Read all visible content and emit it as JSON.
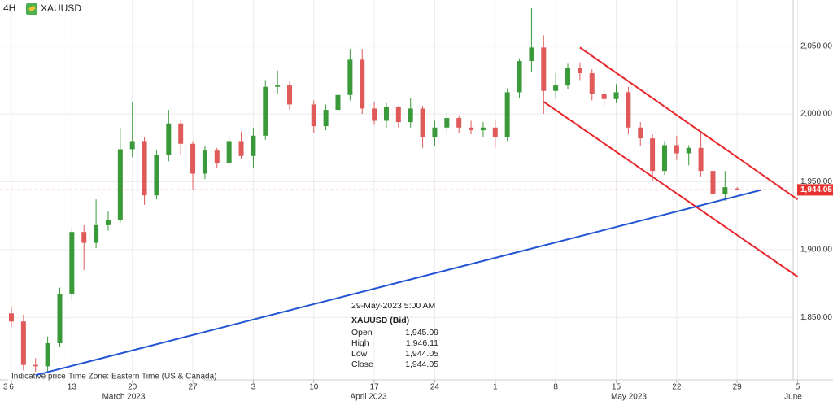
{
  "header": {
    "interval": "4H",
    "symbol": "XAUUSD"
  },
  "footer": {
    "note": "Indicative price",
    "timezone": "Time Zone: Eastern Time (US & Canada)"
  },
  "chart_data": {
    "type": "candlestick",
    "x": [
      "2023-03-06",
      "2023-03-07",
      "2023-03-08",
      "2023-03-09",
      "2023-03-10",
      "2023-03-13",
      "2023-03-14",
      "2023-03-15",
      "2023-03-16",
      "2023-03-17",
      "2023-03-20",
      "2023-03-21",
      "2023-03-22",
      "2023-03-23",
      "2023-03-24",
      "2023-03-27",
      "2023-03-28",
      "2023-03-29",
      "2023-03-30",
      "2023-03-31",
      "2023-04-03",
      "2023-04-04",
      "2023-04-05",
      "2023-04-06",
      "2023-04-10",
      "2023-04-11",
      "2023-04-12",
      "2023-04-13",
      "2023-04-14",
      "2023-04-17",
      "2023-04-18",
      "2023-04-19",
      "2023-04-20",
      "2023-04-21",
      "2023-04-24",
      "2023-04-25",
      "2023-04-26",
      "2023-04-27",
      "2023-04-28",
      "2023-05-01",
      "2023-05-02",
      "2023-05-03",
      "2023-05-04",
      "2023-05-05",
      "2023-05-08",
      "2023-05-09",
      "2023-05-10",
      "2023-05-11",
      "2023-05-12",
      "2023-05-15",
      "2023-05-16",
      "2023-05-17",
      "2023-05-18",
      "2023-05-19",
      "2023-05-22",
      "2023-05-23",
      "2023-05-24",
      "2023-05-25",
      "2023-05-26",
      "2023-05-29"
    ],
    "open": [
      1853,
      1847,
      1815,
      1814,
      1831,
      1867,
      1913,
      1905,
      1918,
      1922,
      1974,
      1980,
      1940,
      1970,
      1993,
      1978,
      1956,
      1973,
      1964,
      1980,
      1969,
      1984,
      2020,
      2021,
      2007,
      1991,
      2003,
      2014,
      2040,
      2004,
      1995,
      2005,
      1994,
      2004,
      1983,
      1990,
      1997,
      1990,
      1988,
      1990,
      1983,
      2016,
      2039,
      2049,
      2017,
      2021,
      2034,
      2030,
      2015,
      2011,
      2016,
      1990,
      1982,
      1958,
      1977,
      1971,
      1975,
      1958,
      1941,
      1945.09
    ],
    "high": [
      1858,
      1852,
      1820,
      1836,
      1872,
      1916,
      1918,
      1937,
      1928,
      1990,
      2009,
      1983,
      1973,
      2003,
      1996,
      1980,
      1976,
      1975,
      1983,
      1987,
      1990,
      2025,
      2032,
      2024,
      2010,
      2007,
      2021,
      2048,
      2048,
      2009,
      2008,
      2006,
      2012,
      2006,
      1995,
      2001,
      1999,
      1995,
      1994,
      1996,
      2019,
      2041,
      2078,
      2058,
      2030,
      2037,
      2038,
      2033,
      2018,
      2022,
      2020,
      1994,
      1985,
      1980,
      1984,
      1977,
      1987,
      1962,
      1958,
      1946.11
    ],
    "low": [
      1843,
      1811,
      1809,
      1810,
      1828,
      1864,
      1885,
      1901,
      1914,
      1920,
      1968,
      1933,
      1937,
      1965,
      1970,
      1944,
      1952,
      1960,
      1962,
      1967,
      1960,
      1981,
      2015,
      2003,
      1986,
      1988,
      1999,
      2010,
      2000,
      1992,
      1990,
      1990,
      1990,
      1975,
      1976,
      1986,
      1986,
      1985,
      1983,
      1975,
      1980,
      2012,
      2031,
      2000,
      2012,
      2018,
      2025,
      2010,
      2005,
      2008,
      1985,
      1976,
      1950,
      1955,
      1966,
      1962,
      1954,
      1936,
      1936,
      1944.05
    ],
    "close": [
      1847,
      1815,
      1814,
      1831,
      1867,
      1913,
      1905,
      1918,
      1922,
      1974,
      1980,
      1940,
      1970,
      1993,
      1978,
      1956,
      1973,
      1964,
      1980,
      1969,
      1984,
      2020,
      2021,
      2007,
      1991,
      2003,
      2014,
      2040,
      2004,
      1995,
      2005,
      1994,
      2004,
      1983,
      1990,
      1997,
      1990,
      1988,
      1990,
      1983,
      2016,
      2039,
      2049,
      2017,
      2021,
      2034,
      2030,
      2015,
      2011,
      2016,
      1990,
      1982,
      1958,
      1977,
      1971,
      1975,
      1958,
      1941,
      1946,
      1944.05
    ],
    "up_color": "#3a9a3a",
    "down_color": "#e05a5a",
    "ylim": [
      1804,
      2084
    ],
    "yticks": [
      {
        "value": 1850,
        "label": "1,850.00"
      },
      {
        "value": 1900,
        "label": "1,900.00"
      },
      {
        "value": 1950,
        "label": "1,950.00"
      },
      {
        "value": 2000,
        "label": "2,000.00"
      },
      {
        "value": 2050,
        "label": "2,050.00"
      }
    ],
    "xticks": [
      {
        "value": "2023-03-03",
        "label": "3"
      },
      {
        "value": "2023-03-06",
        "label": "6"
      },
      {
        "value": "2023-03-13",
        "label": "13"
      },
      {
        "value": "2023-03-20",
        "label": "20"
      },
      {
        "value": "2023-03-27",
        "label": "27"
      },
      {
        "value": "2023-04-03",
        "label": "3"
      },
      {
        "value": "2023-04-10",
        "label": "10"
      },
      {
        "value": "2023-04-17",
        "label": "17"
      },
      {
        "value": "2023-04-24",
        "label": "24"
      },
      {
        "value": "2023-05-01",
        "label": "1"
      },
      {
        "value": "2023-05-08",
        "label": "8"
      },
      {
        "value": "2023-05-15",
        "label": "15"
      },
      {
        "value": "2023-05-22",
        "label": "22"
      },
      {
        "value": "2023-05-29",
        "label": "29"
      },
      {
        "value": "2023-06-05",
        "label": "5"
      }
    ],
    "month_labels": [
      "March 2023",
      "April 2023",
      "May 2023",
      "June"
    ],
    "grid": true,
    "current_price": {
      "value": 1944.05,
      "label": "1,944.05",
      "color": "#e8322f"
    },
    "trendlines": [
      {
        "color": "#e8262b",
        "x": [
          "2023-05-10",
          "2023-06-05"
        ],
        "y": [
          2049,
          1937
        ]
      },
      {
        "color": "#e8262b",
        "x": [
          "2023-05-05",
          "2023-06-05"
        ],
        "y": [
          2009,
          1880
        ]
      },
      {
        "color": "#2255d4",
        "x": [
          "2023-03-08",
          "2023-05-31"
        ],
        "y": [
          1807.5,
          1944
        ]
      }
    ],
    "tooltip": {
      "time": "29-May-2023 5:00 AM",
      "title": "XAUUSD (Bid)",
      "rows": [
        {
          "name": "Open",
          "value": "1,945.09"
        },
        {
          "name": "High",
          "value": "1,946.11"
        },
        {
          "name": "Low",
          "value": "1,944.05"
        },
        {
          "name": "Close",
          "value": "1,944.05"
        }
      ]
    }
  }
}
